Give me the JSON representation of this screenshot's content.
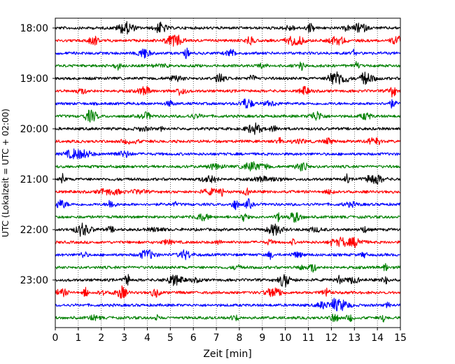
{
  "chart_data": {
    "type": "line",
    "title": "",
    "xlabel": "Zeit  [min]",
    "ylabel": "UTC (Lokalzeit = UTC + 02:00)",
    "xlim": [
      0,
      15
    ],
    "x_ticks": [
      "0",
      "1",
      "2",
      "3",
      "4",
      "5",
      "6",
      "7",
      "8",
      "9",
      "10",
      "11",
      "12",
      "13",
      "14",
      "15"
    ],
    "y_tick_labels": [
      "18:00",
      "19:00",
      "20:00",
      "21:00",
      "22:00",
      "23:00"
    ],
    "grid": "vertical dotted",
    "trace_start": "18:00",
    "trace_interval_minutes": 15,
    "trace_count": 24,
    "trace_colors": [
      "#000000",
      "#ff0000",
      "#0000ff",
      "#008000"
    ]
  }
}
